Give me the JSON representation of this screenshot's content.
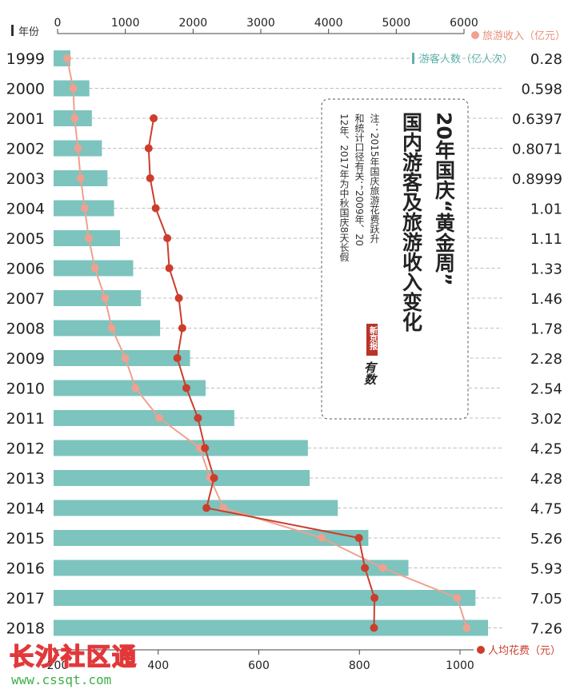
{
  "chart_data": {
    "type": "bar",
    "title": "20年国庆“黄金周”国内游客及旅游收入变化",
    "note": "注：2015年国庆旅游花费跃升和统计口径有关；2009年、2012年、2017年为中秋国庆8天长假",
    "source_badge": "新京报",
    "source_script": "有数",
    "watermark_text": "长沙社区通",
    "watermark_url": "www.cssqt.com",
    "year_axis_label": "年份",
    "categories": [
      "1999",
      "2000",
      "2001",
      "2002",
      "2003",
      "2004",
      "2005",
      "2006",
      "2007",
      "2008",
      "2009",
      "2010",
      "2011",
      "2012",
      "2013",
      "2014",
      "2015",
      "2016",
      "2017",
      "2018"
    ],
    "tourists": {
      "name": "游客人数（亿人次）",
      "value_labels": [
        "0.28",
        "0.598",
        "0.6397",
        "0.8071",
        "0.8999",
        "1.01",
        "1.11",
        "1.33",
        "1.46",
        "1.78",
        "2.28",
        "2.54",
        "3.02",
        "4.25",
        "4.28",
        "4.75",
        "5.26",
        "5.93",
        "7.05",
        "7.26"
      ],
      "values": [
        0.28,
        0.598,
        0.6397,
        0.8071,
        0.8999,
        1.01,
        1.11,
        1.33,
        1.46,
        1.78,
        2.28,
        2.54,
        3.02,
        4.25,
        4.28,
        4.75,
        5.26,
        5.93,
        7.05,
        7.26
      ],
      "color": "#7cc4bd"
    },
    "revenue": {
      "name": "旅游收入（亿元）",
      "axis": {
        "min": 0,
        "max": 6000,
        "ticks": [
          0,
          1000,
          2000,
          3000,
          4000,
          5000,
          6000
        ],
        "tick_labels": [
          "0",
          "1000",
          "2000",
          "3000",
          "4000",
          "5000",
          "6000"
        ]
      },
      "values": [
        141,
        230,
        250,
        300,
        340,
        400,
        460,
        550,
        700,
        800,
        1000,
        1150,
        1500,
        2100,
        2250,
        2450,
        3900,
        4800,
        5900,
        6040
      ],
      "color": "#f0a090"
    },
    "spending": {
      "name": "人均花费（元）",
      "axis": {
        "min": 200,
        "max": 1000,
        "ticks": [
          200,
          400,
          600,
          800,
          1000
        ],
        "tick_labels": [
          "200",
          "400",
          "600",
          "800",
          "1000"
        ]
      },
      "years": [
        "2001",
        "2002",
        "2003",
        "2004",
        "2005",
        "2006",
        "2007",
        "2008",
        "2009",
        "2010",
        "2011",
        "2012",
        "2013",
        "2014",
        "2015",
        "2016",
        "2017",
        "2018"
      ],
      "values": [
        391,
        381,
        384,
        395,
        418,
        422,
        441,
        448,
        438,
        456,
        479,
        493,
        511,
        496,
        799,
        811,
        830,
        829
      ],
      "color": "#cc3d2c"
    },
    "gridlines": true
  }
}
